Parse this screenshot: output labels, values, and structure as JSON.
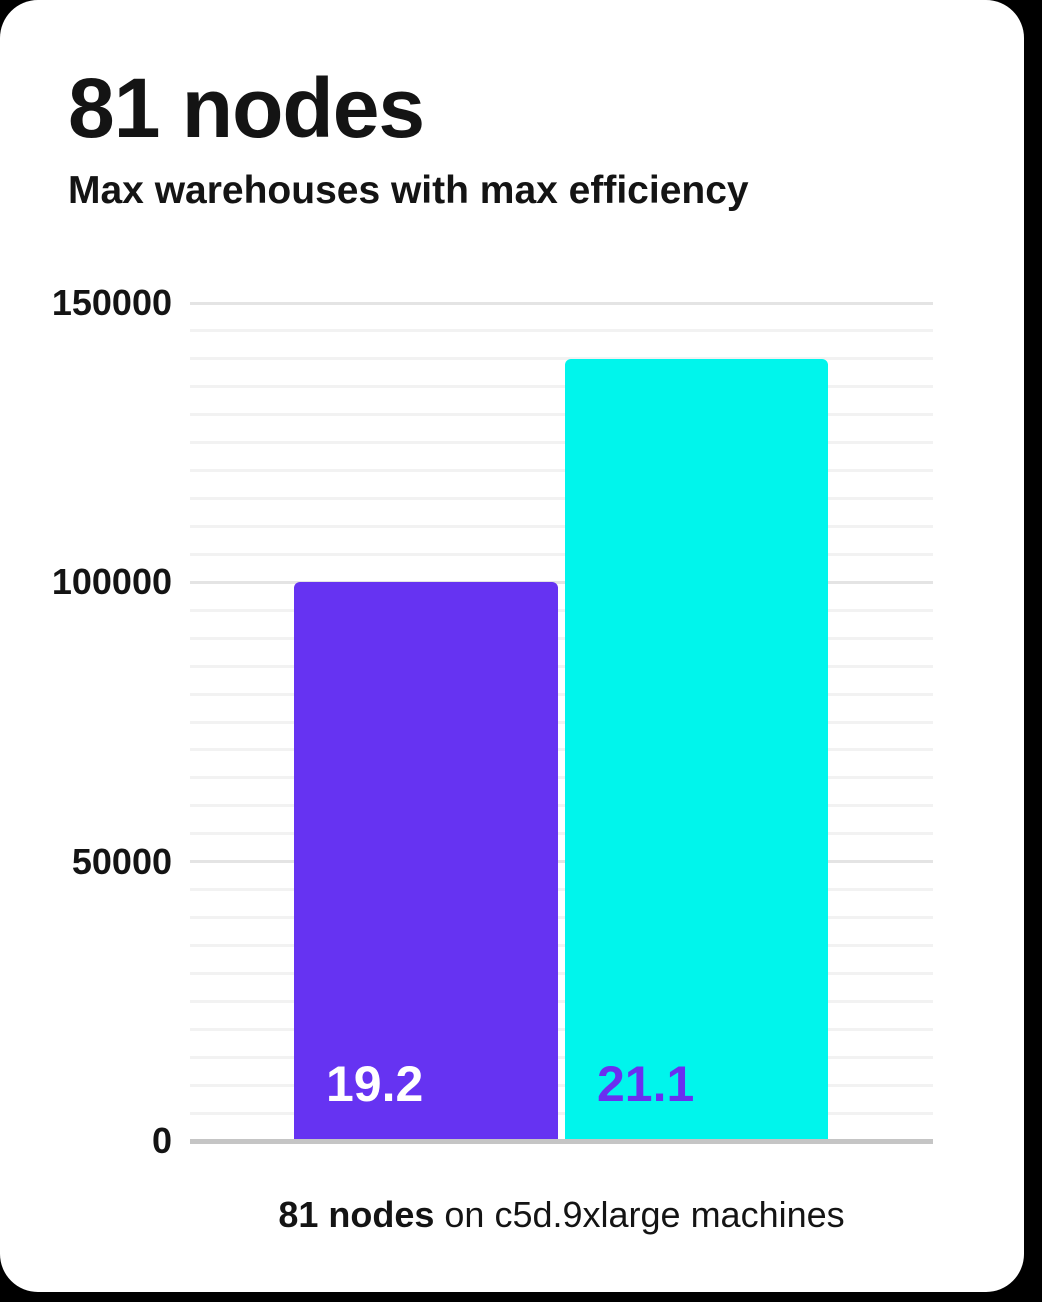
{
  "page": {
    "title": "81 nodes",
    "subtitle": "Max warehouses with max efficiency"
  },
  "caption": {
    "bold": "81 nodes",
    "rest": " on c5d.9xlarge machines"
  },
  "colors": {
    "page_bg": "#000000",
    "card_bg": "#ffffff",
    "text": "#141414",
    "grid_minor": "#f2f2f2",
    "grid_major": "#e4e4e4",
    "axis_line": "#c5c5c5",
    "bar1": "#6633f2",
    "bar2": "#00f5ec",
    "bar1_label": "#ffffff",
    "bar2_label": "#6a2ff0"
  },
  "chart_data": {
    "type": "bar",
    "title": "81 nodes",
    "subtitle": "Max warehouses with max efficiency",
    "caption": "81 nodes on c5d.9xlarge machines",
    "categories": [
      "19.2",
      "21.1"
    ],
    "values": [
      100000,
      140000
    ],
    "bar_value_labels": [
      "19.2",
      "21.1"
    ],
    "bar_colors": [
      "#6633f2",
      "#00f5ec"
    ],
    "bar_label_colors": [
      "#ffffff",
      "#6a2ff0"
    ],
    "ylim": [
      0,
      150000
    ],
    "ytick_major_step": 50000,
    "ytick_minor_step": 5000,
    "ytick_labels": [
      "150000",
      "100000",
      "50000",
      "0"
    ],
    "xlabel": "",
    "ylabel": "",
    "grid": true,
    "legend": false
  }
}
